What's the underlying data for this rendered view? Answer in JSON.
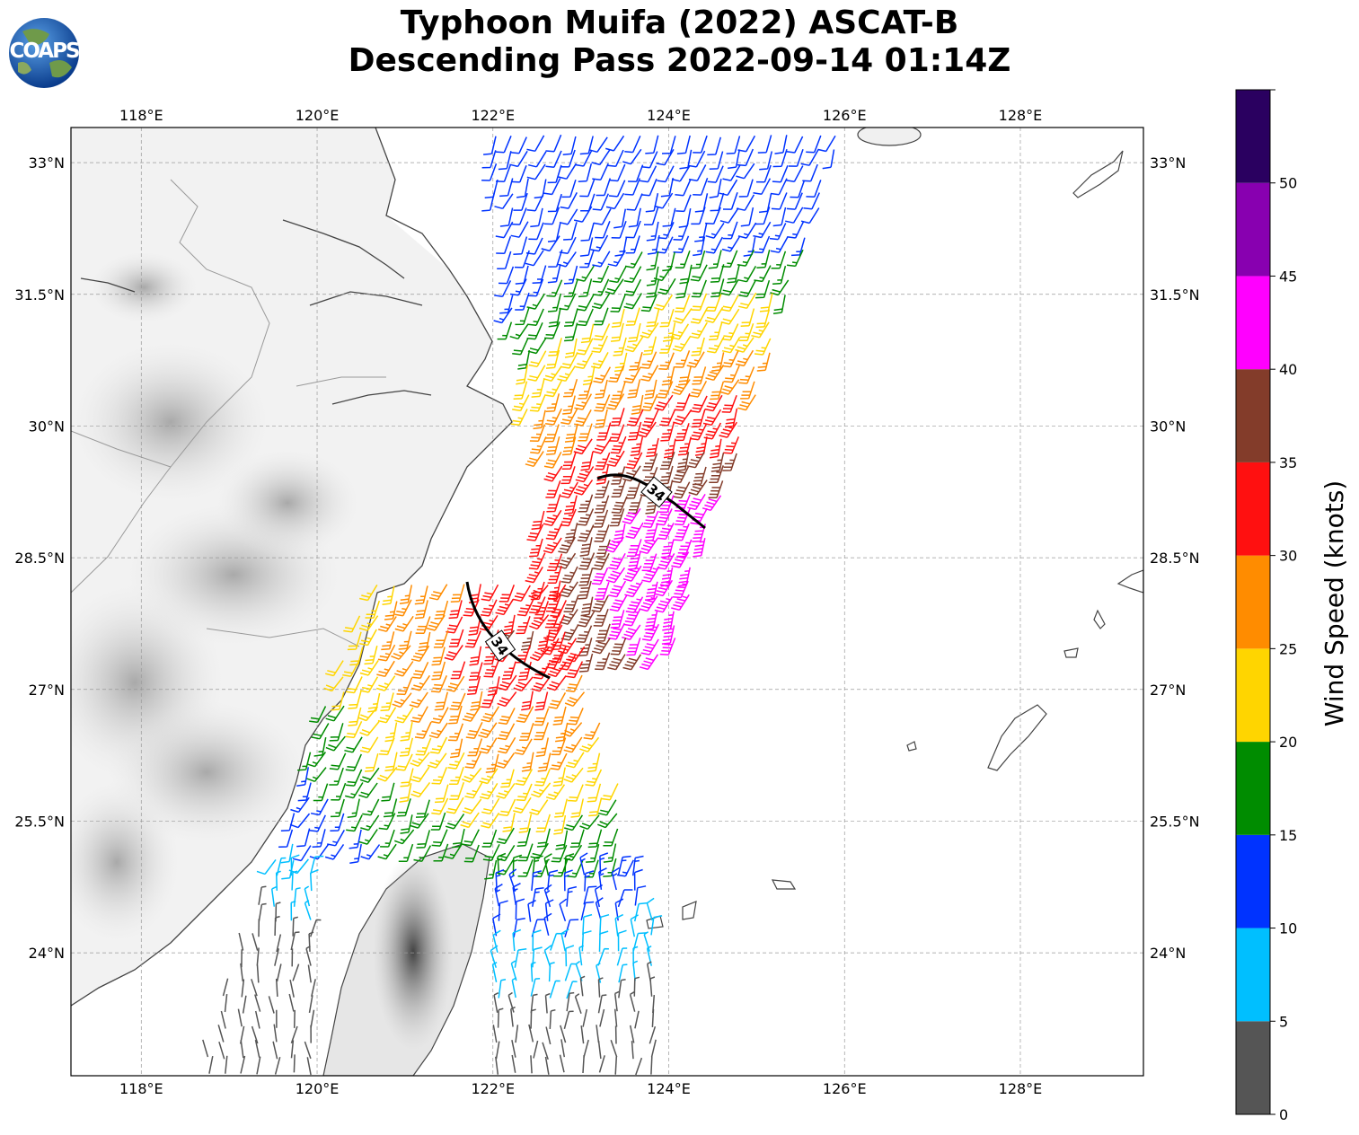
{
  "title": {
    "line1": "Typhoon Muifa (2022) ASCAT-B",
    "line2": "Descending Pass 2022-09-14 01:14Z"
  },
  "logo": {
    "text": "COAPS",
    "icon": "globe-icon"
  },
  "map": {
    "lon_range": [
      117.2,
      129.4
    ],
    "lat_range": [
      22.6,
      33.4
    ],
    "lon_ticks": [
      {
        "value": 118,
        "label": "118°E"
      },
      {
        "value": 120,
        "label": "120°E"
      },
      {
        "value": 122,
        "label": "122°E"
      },
      {
        "value": 124,
        "label": "124°E"
      },
      {
        "value": 126,
        "label": "126°E"
      },
      {
        "value": 128,
        "label": "128°E"
      }
    ],
    "lat_ticks": [
      {
        "value": 33,
        "label": "33°N"
      },
      {
        "value": 31.5,
        "label": "31.5°N"
      },
      {
        "value": 30,
        "label": "30°N"
      },
      {
        "value": 28.5,
        "label": "28.5°N"
      },
      {
        "value": 27,
        "label": "27°N"
      },
      {
        "value": 25.5,
        "label": "25.5°N"
      },
      {
        "value": 24,
        "label": "24°N"
      }
    ],
    "gridlines": true,
    "contour_labels": [
      "34",
      "34"
    ]
  },
  "colorbar": {
    "label": "Wind Speed (knots)",
    "bins": [
      {
        "min": 0,
        "max": 5,
        "color": "#555555"
      },
      {
        "min": 5,
        "max": 10,
        "color": "#00bfff"
      },
      {
        "min": 10,
        "max": 15,
        "color": "#0033ff"
      },
      {
        "min": 15,
        "max": 20,
        "color": "#008c00"
      },
      {
        "min": 20,
        "max": 25,
        "color": "#ffd500"
      },
      {
        "min": 25,
        "max": 30,
        "color": "#ff8c00"
      },
      {
        "min": 30,
        "max": 35,
        "color": "#ff1010"
      },
      {
        "min": 35,
        "max": 40,
        "color": "#833c2a"
      },
      {
        "min": 40,
        "max": 45,
        "color": "#ff00ff"
      },
      {
        "min": 45,
        "max": 50,
        "color": "#8800b0"
      },
      {
        "min": 50,
        "max": 55,
        "color": "#2a0060"
      }
    ],
    "tick_labels": [
      "0",
      "5",
      "10",
      "15",
      "20",
      "25",
      "30",
      "35",
      "40",
      "45",
      "50"
    ]
  }
}
